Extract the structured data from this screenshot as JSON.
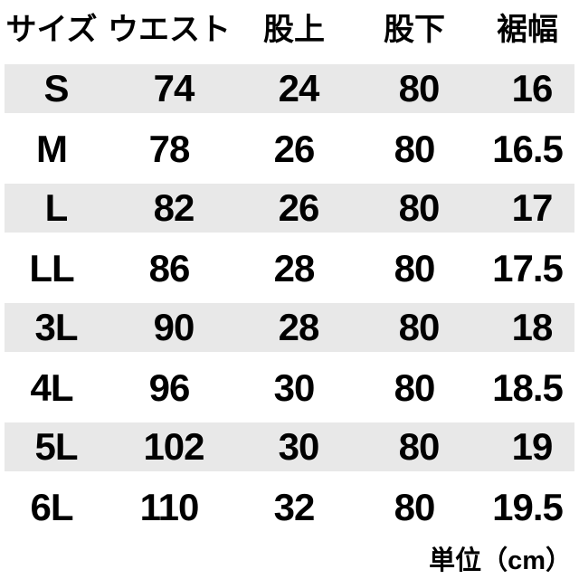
{
  "chart_data": {
    "type": "table",
    "title": "",
    "columns": [
      "サイズ",
      "ウエスト",
      "股上",
      "股下",
      "裾幅"
    ],
    "rows": [
      [
        "S",
        "74",
        "24",
        "80",
        "16"
      ],
      [
        "M",
        "78",
        "26",
        "80",
        "16.5"
      ],
      [
        "L",
        "82",
        "26",
        "80",
        "17"
      ],
      [
        "LL",
        "86",
        "28",
        "80",
        "17.5"
      ],
      [
        "3L",
        "90",
        "28",
        "80",
        "18"
      ],
      [
        "4L",
        "96",
        "30",
        "80",
        "18.5"
      ],
      [
        "5L",
        "102",
        "30",
        "80",
        "19"
      ],
      [
        "6L",
        "110",
        "32",
        "80",
        "19.5"
      ]
    ],
    "unit": "cm",
    "layout_hints": {
      "striped_row_indexes": [
        0,
        2,
        4,
        6
      ],
      "value_alignment": "center",
      "grid": "off"
    }
  },
  "footer": {
    "unit_note": "単位（cm）"
  },
  "colors": {
    "stripe": "#e8e8e8",
    "text": "#000000",
    "background": "#ffffff"
  }
}
